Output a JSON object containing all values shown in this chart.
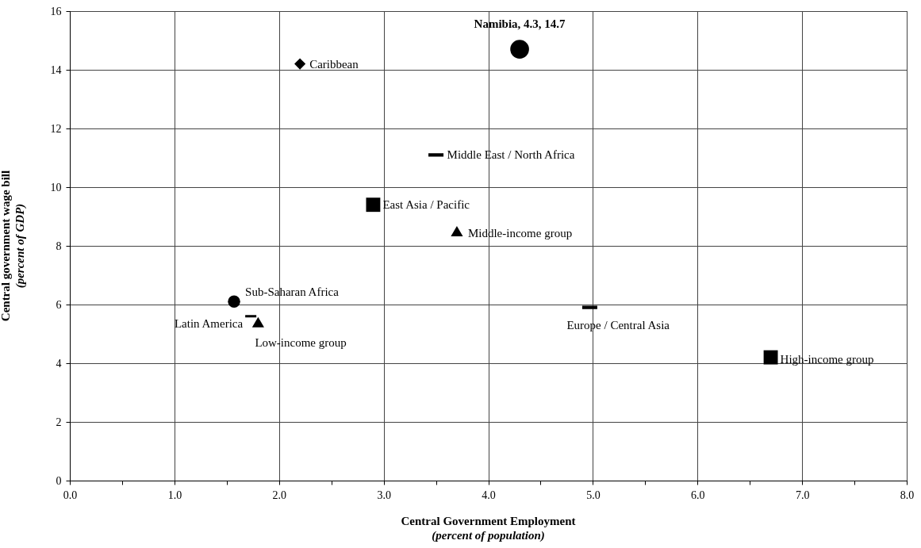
{
  "chart_data": {
    "type": "scatter",
    "xlabel": "Central Government Employment\n(percent of population)",
    "ylabel": "Central government wage bill\n(percent of GDP)",
    "xlim": [
      0,
      8
    ],
    "ylim": [
      0,
      16
    ],
    "xticks": [
      {
        "value": 0,
        "label": "0.0"
      },
      {
        "value": 0.5,
        "label": null
      },
      {
        "value": 1,
        "label": "1.0"
      },
      {
        "value": 1.5,
        "label": null
      },
      {
        "value": 2,
        "label": "2.0"
      },
      {
        "value": 2.5,
        "label": null
      },
      {
        "value": 3,
        "label": "3.0"
      },
      {
        "value": 3.5,
        "label": null
      },
      {
        "value": 4,
        "label": "4.0"
      },
      {
        "value": 4.5,
        "label": null
      },
      {
        "value": 5,
        "label": "5.0"
      },
      {
        "value": 5.5,
        "label": null
      },
      {
        "value": 6,
        "label": "6.0"
      },
      {
        "value": 6.5,
        "label": null
      },
      {
        "value": 7,
        "label": "7.0"
      },
      {
        "value": 7.5,
        "label": null
      },
      {
        "value": 8,
        "label": "8.0"
      }
    ],
    "yticks": [
      0,
      2,
      4,
      6,
      8,
      10,
      12,
      14,
      16
    ],
    "grid": true,
    "series": [
      {
        "name": "Caribbean",
        "color": "#000000",
        "marker": "diamond",
        "x": [
          2.2
        ],
        "values": [
          14.2
        ]
      },
      {
        "name": "Middle East / North Africa",
        "color": "#000000",
        "x": [
          3.5
        ],
        "values": [
          11.1
        ]
      },
      {
        "name": "East Asia / Pacific",
        "color": "#000000",
        "marker": "square",
        "x": [
          2.9
        ],
        "values": [
          9.4
        ]
      },
      {
        "name": "Middle-income group",
        "color": "#000000",
        "marker": "triangle",
        "x": [
          3.7
        ],
        "values": [
          8.5
        ]
      },
      {
        "name": "Sub-Saharan Africa",
        "color": "#000000",
        "marker": "circle",
        "x": [
          1.57
        ],
        "values": [
          6.1
        ]
      },
      {
        "name": "Latin America",
        "color": "#000000",
        "x": [
          1.73
        ],
        "values": [
          5.6
        ]
      },
      {
        "name": "Low-income group",
        "color": "#000000",
        "marker": "triangle",
        "x": [
          1.8
        ],
        "values": [
          5.4
        ]
      },
      {
        "name": "Europe / Central Asia",
        "color": "#000000",
        "x": [
          4.97
        ],
        "values": [
          5.9
        ]
      },
      {
        "name": "High-income group",
        "color": "#000000",
        "marker": "square",
        "x": [
          6.7
        ],
        "values": [
          4.2
        ]
      },
      {
        "color": "#000000",
        "marker": "circle",
        "x": [
          4.3
        ],
        "values": [
          14.7
        ]
      }
    ],
    "annotations": [
      {
        "text": "Namibia, 4.3, 14.7",
        "x": 4.3,
        "y": 14.7
      }
    ]
  }
}
